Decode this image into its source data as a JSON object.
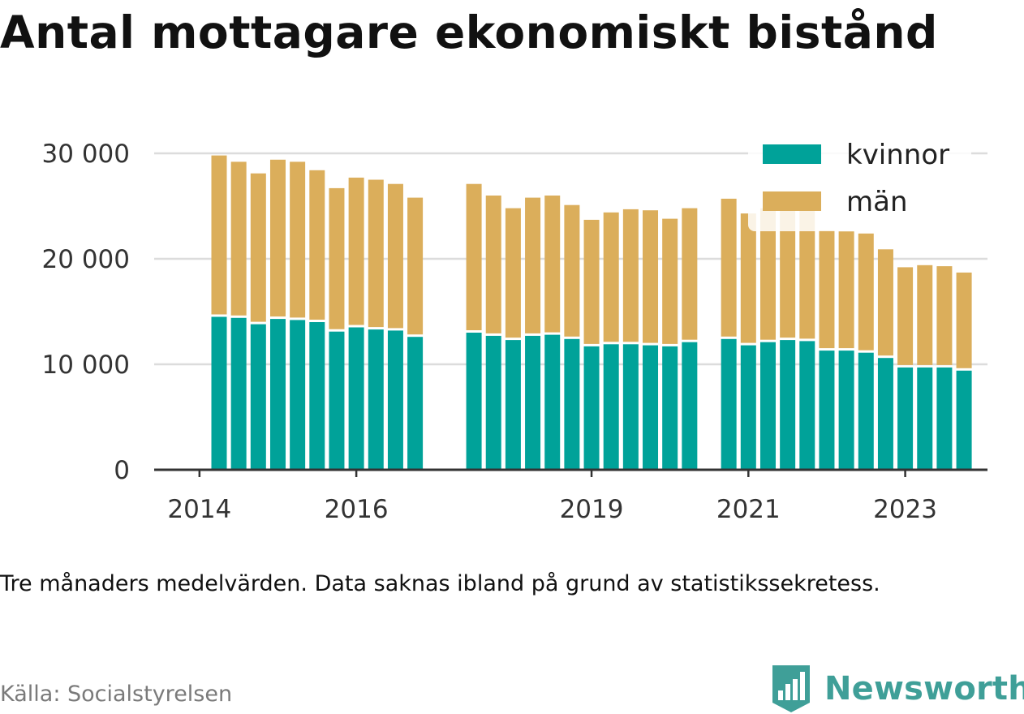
{
  "title": "Antal mottagare ekonomiskt bistånd",
  "note": "Tre månaders medelvärden. Data saknas ibland på grund av statistikssekretess.",
  "source": "Källa: Socialstyrelsen",
  "brand": {
    "name": "Newsworthy",
    "icon": "newsworthy-logo-icon",
    "color": "#3f9f98"
  },
  "chart_data": {
    "type": "bar",
    "stacked": true,
    "ylim": [
      0,
      30000
    ],
    "y_ticks": [
      0,
      10000,
      20000,
      30000
    ],
    "y_tick_labels": [
      "0",
      "10 000",
      "20 000",
      "30 000"
    ],
    "x_ticks": [
      "2014",
      "2016",
      "2019",
      "2021",
      "2023"
    ],
    "grid": true,
    "legend_position": "top-right",
    "categories": [
      "2014-Q2",
      "2014-Q3",
      "2014-Q4",
      "2015-Q1",
      "2015-Q2",
      "2015-Q3",
      "2015-Q4",
      "2016-Q1",
      "2016-Q2",
      "2016-Q3",
      "2016-Q4",
      "2017-Q1",
      "2017-Q2",
      "2017-Q3",
      "2017-Q4",
      "2018-Q1",
      "2018-Q2",
      "2018-Q3",
      "2018-Q4",
      "2019-Q1",
      "2019-Q2",
      "2019-Q3",
      "2019-Q4",
      "2020-Q1",
      "2020-Q2",
      "2020-Q3",
      "2020-Q4",
      "2021-Q1",
      "2021-Q2",
      "2021-Q3",
      "2021-Q4",
      "2022-Q1",
      "2022-Q2",
      "2022-Q3",
      "2022-Q4",
      "2023-Q1",
      "2023-Q2",
      "2023-Q3",
      "2023-Q4"
    ],
    "series": [
      {
        "name": "kvinnor",
        "color": "#00a299",
        "values": [
          14500,
          14400,
          13800,
          14300,
          14200,
          14000,
          13100,
          13500,
          13300,
          13200,
          12600,
          null,
          null,
          13000,
          12700,
          12300,
          12700,
          12800,
          12400,
          11700,
          11900,
          11900,
          11800,
          11700,
          12100,
          null,
          12400,
          11800,
          12100,
          12300,
          12200,
          11300,
          11300,
          11100,
          10600,
          9700,
          9700,
          9700,
          9400
        ]
      },
      {
        "name": "män",
        "color": "#dbae5b",
        "values": [
          15300,
          14800,
          14300,
          15100,
          15000,
          14400,
          13600,
          14200,
          14200,
          13900,
          13200,
          null,
          null,
          14100,
          13300,
          12500,
          13100,
          13200,
          12700,
          12000,
          12500,
          12800,
          12800,
          12100,
          12700,
          null,
          13300,
          12500,
          12700,
          12300,
          12400,
          11400,
          11300,
          11300,
          10300,
          9500,
          9700,
          9600,
          9300
        ]
      }
    ]
  }
}
